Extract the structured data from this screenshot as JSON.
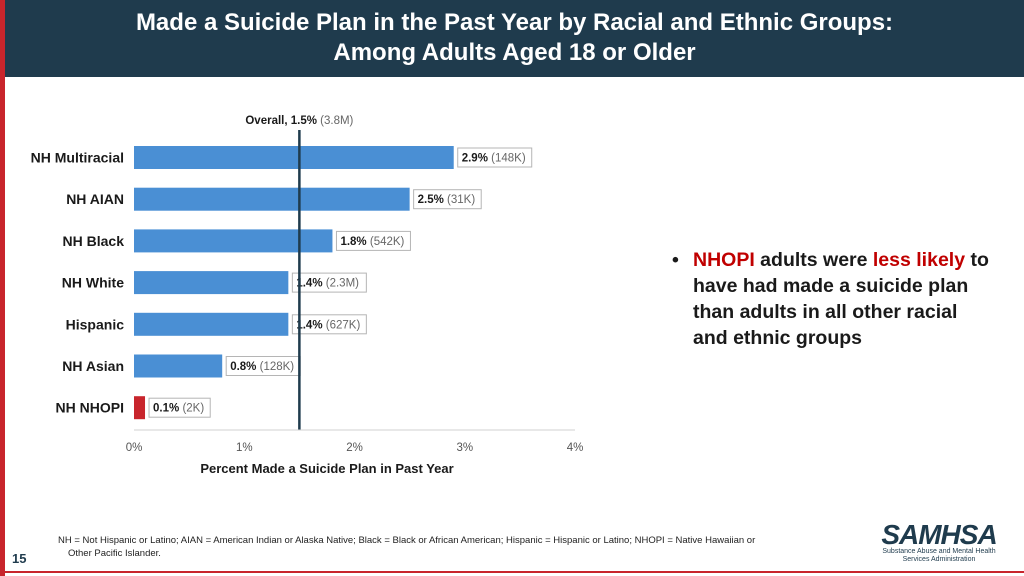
{
  "slide": {
    "title_line1": "Made a Suicide Plan in the Past Year by Racial and Ethnic Groups:",
    "title_line2": "Among Adults Aged 18 or Older",
    "page_number": "15"
  },
  "bullet": {
    "seg1": "NHOPI",
    "seg2": " adults were ",
    "seg3": "less likely",
    "seg4": " to have had made a suicide plan than adults in all other racial and ethnic groups",
    "marker": "•"
  },
  "footnote": {
    "line1": "NH = Not Hispanic or Latino; AIAN = American Indian or Alaska Native; Black = Black or African American; Hispanic = Hispanic or Latino; NHOPI = Native Hawaiian or",
    "line2": "Other Pacific Islander."
  },
  "logo": {
    "word": "SAMHSA",
    "sub1": "Substance Abuse and Mental Health",
    "sub2": "Services Administration"
  },
  "colors": {
    "bar": "#4a8fd4",
    "bar_highlight": "#c8252c",
    "header": "#1f3b4d",
    "accent_red": "#c00000"
  },
  "chart_data": {
    "type": "bar",
    "orientation": "horizontal",
    "categories": [
      "NH Multiracial",
      "NH AIAN",
      "NH Black",
      "NH White",
      "Hispanic",
      "NH Asian",
      "NH NHOPI"
    ],
    "values": [
      2.9,
      2.5,
      1.8,
      1.4,
      1.4,
      0.8,
      0.1
    ],
    "value_labels": [
      "2.9%",
      "2.5%",
      "1.8%",
      "1.4%",
      "1.4%",
      "0.8%",
      "0.1%"
    ],
    "count_labels": [
      "(148K)",
      "(31K)",
      "(542K)",
      "(2.3M)",
      "(627K)",
      "(128K)",
      "(2K)"
    ],
    "highlight_index": 6,
    "reference_line": {
      "value": 1.5,
      "label": "Overall, 1.5%",
      "count": "(3.8M)"
    },
    "xlim": [
      0,
      4
    ],
    "xticks": [
      0,
      1,
      2,
      3,
      4
    ],
    "xtick_labels": [
      "0%",
      "1%",
      "2%",
      "3%",
      "4%"
    ],
    "xlabel": "Percent Made a Suicide Plan in Past Year",
    "ylabel": ""
  }
}
